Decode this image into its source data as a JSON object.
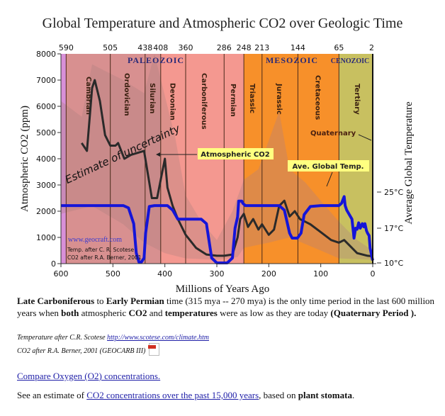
{
  "title": "Global Temperature and Atmospheric CO2 over Geologic Time",
  "chart_data": {
    "type": "line",
    "title": "Global Temperature and Atmospheric CO2 over Geologic Time",
    "xlabel": "Millions of Years Ago",
    "ylabel": "Atmospheric CO2 (ppm)",
    "ylabel_right": "Average Global Temperature",
    "xlim": [
      600,
      0
    ],
    "ylim": [
      0,
      8000
    ],
    "y2lim_celsius": [
      10,
      25
    ],
    "x_ticks": [
      "600",
      "500",
      "400",
      "300",
      "200",
      "100",
      "0"
    ],
    "y_ticks": [
      "0",
      "1000",
      "2000",
      "3000",
      "4000",
      "5000",
      "6000",
      "7000",
      "8000"
    ],
    "y2_ticks": [
      "10°C",
      "17°C",
      "25°C"
    ],
    "boundary_ticks": [
      "590",
      "505",
      "438",
      "408",
      "360",
      "286",
      "248",
      "213",
      "144",
      "65",
      "2"
    ],
    "boundaries": [
      590,
      505,
      438,
      408,
      360,
      286,
      248,
      213,
      144,
      65,
      2
    ],
    "eras": [
      {
        "name": "PALEOZOIC",
        "from": 590,
        "to": 248
      },
      {
        "name": "MESOZOIC",
        "from": 248,
        "to": 65
      },
      {
        "name": "CENOZOIC",
        "from": 65,
        "to": 0
      }
    ],
    "periods": [
      {
        "name": "Cambrian",
        "from": 590,
        "to": 505,
        "color": "#d89090"
      },
      {
        "name": "Ordovician",
        "from": 505,
        "to": 438,
        "color": "#d89090"
      },
      {
        "name": "Silurian",
        "from": 438,
        "to": 408,
        "color": "#d89090"
      },
      {
        "name": "Devonian",
        "from": 408,
        "to": 360,
        "color": "#f49890"
      },
      {
        "name": "Carboniferous",
        "from": 360,
        "to": 286,
        "color": "#f49890"
      },
      {
        "name": "Permian",
        "from": 286,
        "to": 248,
        "color": "#f49890"
      },
      {
        "name": "Triassic",
        "from": 248,
        "to": 213,
        "color": "#f7902a"
      },
      {
        "name": "Jurassic",
        "from": 213,
        "to": 144,
        "color": "#f7902a"
      },
      {
        "name": "Cretaceous",
        "from": 144,
        "to": 65,
        "color": "#f7902a"
      },
      {
        "name": "Tertiary",
        "from": 65,
        "to": 2,
        "color": "#c8c060"
      }
    ],
    "precambrian_color": "#d890d8",
    "series": [
      {
        "name": "Atmospheric CO2",
        "unit": "ppm",
        "color": "#2a2a2a",
        "x": [
          560,
          550,
          540,
          535,
          525,
          515,
          505,
          495,
          490,
          478,
          465,
          440,
          425,
          415,
          405,
          400,
          395,
          385,
          375,
          360,
          340,
          320,
          300,
          286,
          270,
          260,
          255,
          248,
          240,
          230,
          220,
          213,
          200,
          190,
          180,
          170,
          160,
          150,
          140,
          130,
          120,
          100,
          80,
          65,
          55,
          45,
          30,
          10,
          0
        ],
        "y": [
          4600,
          4300,
          6700,
          7000,
          6200,
          4900,
          4500,
          4500,
          4600,
          4000,
          4150,
          4300,
          2500,
          2500,
          3500,
          4000,
          2900,
          2200,
          1700,
          1100,
          600,
          350,
          300,
          300,
          350,
          1000,
          1700,
          1900,
          1400,
          1700,
          1300,
          1500,
          1100,
          1300,
          2200,
          2400,
          1800,
          2000,
          1700,
          1600,
          1500,
          1200,
          900,
          800,
          900,
          700,
          400,
          300,
          280
        ]
      },
      {
        "name": "Ave. Global Temp.",
        "unit": "°C",
        "color": "#1515d8",
        "x": [
          600,
          480,
          470,
          460,
          455,
          450,
          445,
          440,
          437,
          430,
          420,
          395,
          385,
          375,
          350,
          330,
          320,
          310,
          300,
          290,
          280,
          270,
          265,
          260,
          258,
          252,
          250,
          245,
          200,
          180,
          170,
          160,
          155,
          145,
          138,
          132,
          120,
          100,
          80,
          65,
          60,
          55,
          53,
          50,
          45,
          40,
          38,
          36,
          33,
          30,
          27,
          24,
          20,
          17,
          15,
          12,
          10,
          7,
          5,
          2,
          0
        ],
        "y": [
          22,
          22,
          21.5,
          18,
          12,
          10.2,
          10.2,
          11,
          16,
          21.8,
          22,
          22,
          21,
          19,
          19,
          19,
          18,
          11,
          10,
          10,
          10,
          11,
          17,
          19.5,
          23,
          23,
          22.5,
          22,
          22,
          22,
          21,
          16,
          15,
          15,
          16,
          20,
          21.8,
          22,
          22,
          22,
          22.5,
          24,
          22,
          21,
          20,
          19,
          17,
          15,
          17,
          16.8,
          18.2,
          17,
          18,
          17.3,
          18,
          16.5,
          16,
          15.5,
          13,
          11.5,
          10.5
        ]
      }
    ],
    "uncertainty_band": {
      "name": "Estimate of uncertainty",
      "color": "#b08080"
    },
    "annotations": [
      {
        "text": "Estimate of uncertainty",
        "kind": "rotated-label"
      },
      {
        "text": "Atmospheric CO2",
        "kind": "callout"
      },
      {
        "text": "Ave. Global Temp.",
        "kind": "callout"
      },
      {
        "text": "Quaternary",
        "kind": "callout"
      },
      {
        "text": "www.geocraft.com",
        "kind": "credit"
      },
      {
        "text": "Temp. after C. R. Scotese",
        "kind": "credit"
      },
      {
        "text": "CO2 after R.A. Berner, 2001",
        "kind": "credit"
      }
    ]
  },
  "text": {
    "para1_bold1": "Late Carboniferous",
    "para1_t1": " to ",
    "para1_bold2": "Early Permian",
    "para1_t2": " time (315 mya -- 270 mya) is the only time period in the last 600 million years when ",
    "para1_bold3": "both",
    "para1_t3": " atmospheric ",
    "para1_bold4": "CO2",
    "para1_t4": " and ",
    "para1_bold5": "temperatures",
    "para1_t5": " were as low as they are today ",
    "para1_bold6": "(Quaternary Period ).",
    "credit1_text": "Temperature after C.R. Scotese ",
    "credit1_link": "http://www.scotese.com/climate.htm",
    "credit2_text": "CO2 after R.A. Berner, 2001 (GEOCARB III)",
    "pdf_icon": "pdf-icon",
    "link_oxygen": "Compare Oxygen (O2) concentrations.",
    "para2_t1": "See an estimate of ",
    "para2_link": "CO2 concentrations over the past 15,000 years",
    "para2_t2": ", based on ",
    "para2_bold": "plant stomata",
    "para2_t3": "."
  }
}
